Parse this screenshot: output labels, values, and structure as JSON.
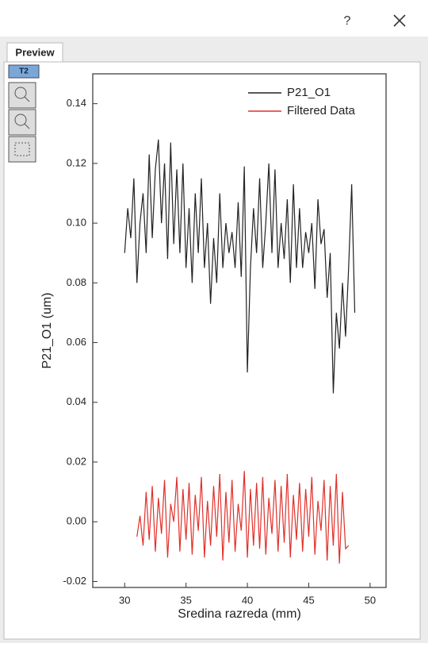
{
  "dialog": {
    "help": "?",
    "tab": "Preview",
    "badge": "T2"
  },
  "chart_data": {
    "type": "line",
    "x_label": "Sredina razreda (mm)",
    "y_label": "P21_O1 (um)",
    "x": [
      30,
      30.25,
      30.5,
      30.75,
      31,
      31.25,
      31.5,
      31.75,
      32,
      32.25,
      32.5,
      32.75,
      33,
      33.25,
      33.5,
      33.75,
      34,
      34.25,
      34.5,
      34.75,
      35,
      35.25,
      35.5,
      35.75,
      36,
      36.25,
      36.5,
      36.75,
      37,
      37.25,
      37.5,
      37.75,
      38,
      38.25,
      38.5,
      38.75,
      39,
      39.25,
      39.5,
      39.75,
      40,
      40.25,
      40.5,
      40.75,
      41,
      41.25,
      41.5,
      41.75,
      42,
      42.25,
      42.5,
      42.75,
      43,
      43.25,
      43.5,
      43.75,
      44,
      44.25,
      44.5,
      44.75,
      45,
      45.25,
      45.5,
      45.75,
      46,
      46.25,
      46.5,
      46.75,
      47,
      47.25,
      47.5,
      47.75,
      48,
      48.25,
      48.5,
      48.75
    ],
    "series": [
      {
        "name": "P21_O1",
        "color": "#222222",
        "values": [
          0.09,
          0.105,
          0.095,
          0.115,
          0.08,
          0.1,
          0.11,
          0.09,
          0.123,
          0.095,
          0.118,
          0.128,
          0.1,
          0.12,
          0.088,
          0.127,
          0.093,
          0.118,
          0.09,
          0.12,
          0.085,
          0.105,
          0.08,
          0.11,
          0.09,
          0.115,
          0.085,
          0.1,
          0.073,
          0.095,
          0.08,
          0.11,
          0.085,
          0.1,
          0.09,
          0.097,
          0.085,
          0.107,
          0.082,
          0.119,
          0.05,
          0.085,
          0.105,
          0.09,
          0.115,
          0.085,
          0.1,
          0.12,
          0.09,
          0.118,
          0.085,
          0.1,
          0.088,
          0.108,
          0.08,
          0.113,
          0.085,
          0.105,
          0.085,
          0.097,
          0.09,
          0.1,
          0.078,
          0.108,
          0.093,
          0.098,
          0.075,
          0.09,
          0.043,
          0.07,
          0.058,
          0.08,
          0.062,
          0.085,
          0.113,
          0.07
        ]
      },
      {
        "name": "Filtered Data",
        "color": "#e0302a",
        "values": [
          null,
          null,
          null,
          null,
          -0.005,
          0.002,
          -0.008,
          0.01,
          -0.006,
          0.012,
          -0.01,
          0.008,
          -0.004,
          0.014,
          -0.012,
          0.006,
          0.0,
          0.015,
          -0.01,
          0.011,
          -0.006,
          0.013,
          -0.011,
          0.009,
          -0.003,
          0.015,
          -0.012,
          0.007,
          -0.008,
          0.012,
          -0.005,
          0.016,
          -0.013,
          0.01,
          -0.007,
          0.014,
          -0.01,
          0.006,
          -0.003,
          0.017,
          -0.012,
          0.011,
          -0.008,
          0.013,
          -0.009,
          0.015,
          -0.011,
          0.008,
          -0.004,
          0.014,
          -0.01,
          0.012,
          -0.007,
          0.016,
          -0.012,
          0.009,
          -0.006,
          0.013,
          -0.01,
          0.011,
          -0.005,
          0.015,
          -0.011,
          0.007,
          -0.003,
          0.014,
          -0.013,
          0.012,
          -0.008,
          0.016,
          -0.014,
          0.01,
          -0.009,
          -0.008,
          null,
          null
        ]
      }
    ],
    "xlim": [
      27.4,
      51.3
    ],
    "ylim": [
      -0.022,
      0.15
    ],
    "xticks": [
      30,
      35,
      40,
      45,
      50
    ],
    "yticks": [
      -0.02,
      {
        "value": 0,
        "label": "0.00"
      },
      0.02,
      0.04,
      0.06,
      0.08,
      {
        "value": 0.1,
        "label": "0.10"
      },
      0.12,
      0.14
    ],
    "legend": "upper right"
  }
}
